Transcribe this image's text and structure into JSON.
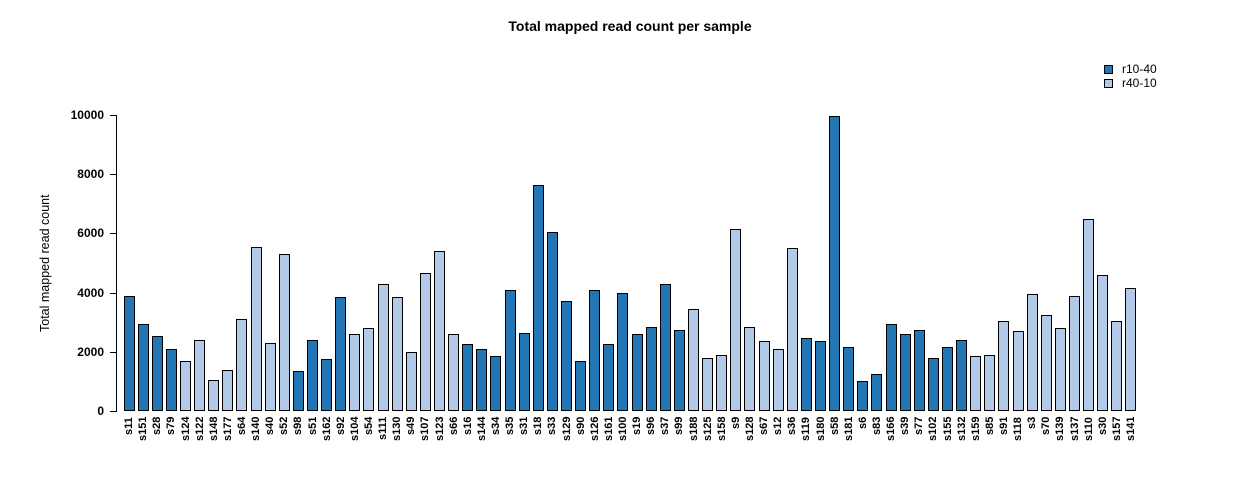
{
  "title": "Total mapped read count per sample",
  "colors": {
    "r10-40": "#2376b4",
    "r40-10": "#b3c9e8",
    "bar_border": "#000000",
    "axis": "#000000"
  },
  "legend": [
    {
      "label": "r10-40",
      "color": "#2376b4"
    },
    {
      "label": "r40-10",
      "color": "#b3c9e8"
    }
  ],
  "chart_data": {
    "type": "bar",
    "title": "Total mapped read count per sample",
    "xlabel": "",
    "ylabel": "Total mapped read count",
    "ylim": [
      0,
      10000
    ],
    "yticks": [
      0,
      2000,
      4000,
      6000,
      8000,
      10000
    ],
    "grid": false,
    "legend_position": "top-right",
    "series_note": "single bar per sample; group column maps each bar to legend series",
    "categories": [
      "s11",
      "s151",
      "s28",
      "s79",
      "s124",
      "s122",
      "s148",
      "s177",
      "s64",
      "s140",
      "s40",
      "s52",
      "s98",
      "s51",
      "s162",
      "s92",
      "s104",
      "s54",
      "s111",
      "s130",
      "s49",
      "s107",
      "s123",
      "s66",
      "s16",
      "s144",
      "s34",
      "s35",
      "s31",
      "s18",
      "s33",
      "s129",
      "s90",
      "s126",
      "s161",
      "s100",
      "s19",
      "s96",
      "s37",
      "s99",
      "s188",
      "s125",
      "s158",
      "s9",
      "s128",
      "s67",
      "s12",
      "s36",
      "s119",
      "s180",
      "s58",
      "s181",
      "s6",
      "s83",
      "s166",
      "s39",
      "s77",
      "s102",
      "s155",
      "s132",
      "s159",
      "s85",
      "s91",
      "s118",
      "s3",
      "s70",
      "s139",
      "s137",
      "s110",
      "s30",
      "s157",
      "s141"
    ],
    "values": [
      3900,
      2950,
      2550,
      2100,
      1700,
      2400,
      1050,
      1400,
      3100,
      5550,
      2300,
      5300,
      1350,
      2400,
      1750,
      3850,
      2600,
      2800,
      4300,
      3850,
      2000,
      4650,
      5400,
      2600,
      2250,
      2100,
      1850,
      4100,
      2650,
      7650,
      6050,
      3700,
      1700,
      4100,
      2250,
      4000,
      2600,
      2850,
      4300,
      2750,
      3450,
      1800,
      1900,
      6150,
      2850,
      2350,
      2100,
      5500,
      2450,
      2350,
      9950,
      2150,
      1000,
      1250,
      2950,
      2600,
      2750,
      1800,
      2150,
      2400,
      1850,
      1900,
      3050,
      2700,
      3950,
      3250,
      2800,
      3900,
      6500,
      4600,
      3050,
      4150
    ],
    "groups": [
      "r10-40",
      "r10-40",
      "r10-40",
      "r10-40",
      "r40-10",
      "r40-10",
      "r40-10",
      "r40-10",
      "r40-10",
      "r40-10",
      "r40-10",
      "r40-10",
      "r10-40",
      "r10-40",
      "r10-40",
      "r10-40",
      "r40-10",
      "r40-10",
      "r40-10",
      "r40-10",
      "r40-10",
      "r40-10",
      "r40-10",
      "r40-10",
      "r10-40",
      "r10-40",
      "r10-40",
      "r10-40",
      "r10-40",
      "r10-40",
      "r10-40",
      "r10-40",
      "r10-40",
      "r10-40",
      "r10-40",
      "r10-40",
      "r10-40",
      "r10-40",
      "r10-40",
      "r10-40",
      "r40-10",
      "r40-10",
      "r40-10",
      "r40-10",
      "r40-10",
      "r40-10",
      "r40-10",
      "r40-10",
      "r10-40",
      "r10-40",
      "r10-40",
      "r10-40",
      "r10-40",
      "r10-40",
      "r10-40",
      "r10-40",
      "r10-40",
      "r10-40",
      "r10-40",
      "r10-40",
      "r40-10",
      "r40-10",
      "r40-10",
      "r40-10",
      "r40-10",
      "r40-10",
      "r40-10",
      "r40-10",
      "r40-10",
      "r40-10",
      "r40-10",
      "r40-10"
    ]
  }
}
